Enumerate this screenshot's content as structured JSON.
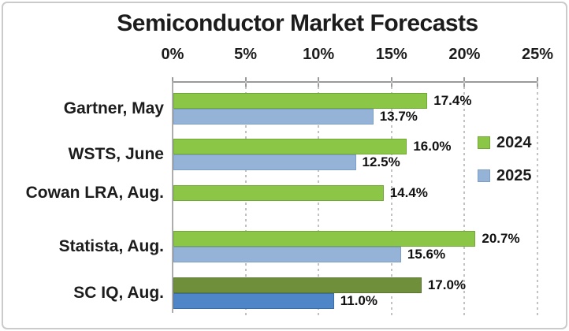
{
  "chart_data": {
    "type": "bar",
    "orientation": "horizontal",
    "title": "Semiconductor Market Forecasts",
    "categories": [
      "Gartner, May",
      "WSTS, June",
      "Cowan LRA, Aug.",
      "Statista, Aug.",
      "SC IQ, Aug."
    ],
    "series": [
      {
        "name": "2024",
        "values": [
          17.4,
          16.0,
          14.4,
          20.7,
          17.0
        ],
        "value_labels": [
          "17.4%",
          "16.0%",
          "14.4%",
          "20.7%",
          "17.0%"
        ],
        "colors": [
          "#8CC646",
          "#8CC646",
          "#8CC646",
          "#8CC646",
          "#6F8F3A"
        ],
        "edge_colors": [
          "#72A836",
          "#72A836",
          "#72A836",
          "#72A836",
          "#5A7530"
        ]
      },
      {
        "name": "2025",
        "values": [
          13.7,
          12.5,
          null,
          15.6,
          11.0
        ],
        "value_labels": [
          "13.7%",
          "12.5%",
          null,
          "15.6%",
          "11.0%"
        ],
        "colors": [
          "#95B3D7",
          "#95B3D7",
          null,
          "#95B3D7",
          "#4E86C8"
        ],
        "edge_colors": [
          "#7C9EC7",
          "#7C9EC7",
          null,
          "#7C9EC7",
          "#3C6CA6"
        ]
      }
    ],
    "x_ticks": [
      "0%",
      "5%",
      "10%",
      "15%",
      "20%",
      "25%"
    ],
    "xlim": [
      0,
      25
    ],
    "grid": "vertical-dashed",
    "legend": {
      "position": "inside-right",
      "entries": [
        {
          "label": "2024",
          "color": "#8CC646",
          "edge": "#72A836"
        },
        {
          "label": "2025",
          "color": "#95B3D7",
          "edge": "#7C9EC7"
        }
      ]
    }
  },
  "colors": {
    "grid": "#C2C2C2",
    "axis": "#9A9A9A",
    "plot_border": "#ADADAD",
    "text": "#1C1C1C",
    "frame_border": "#CBCBCB"
  }
}
